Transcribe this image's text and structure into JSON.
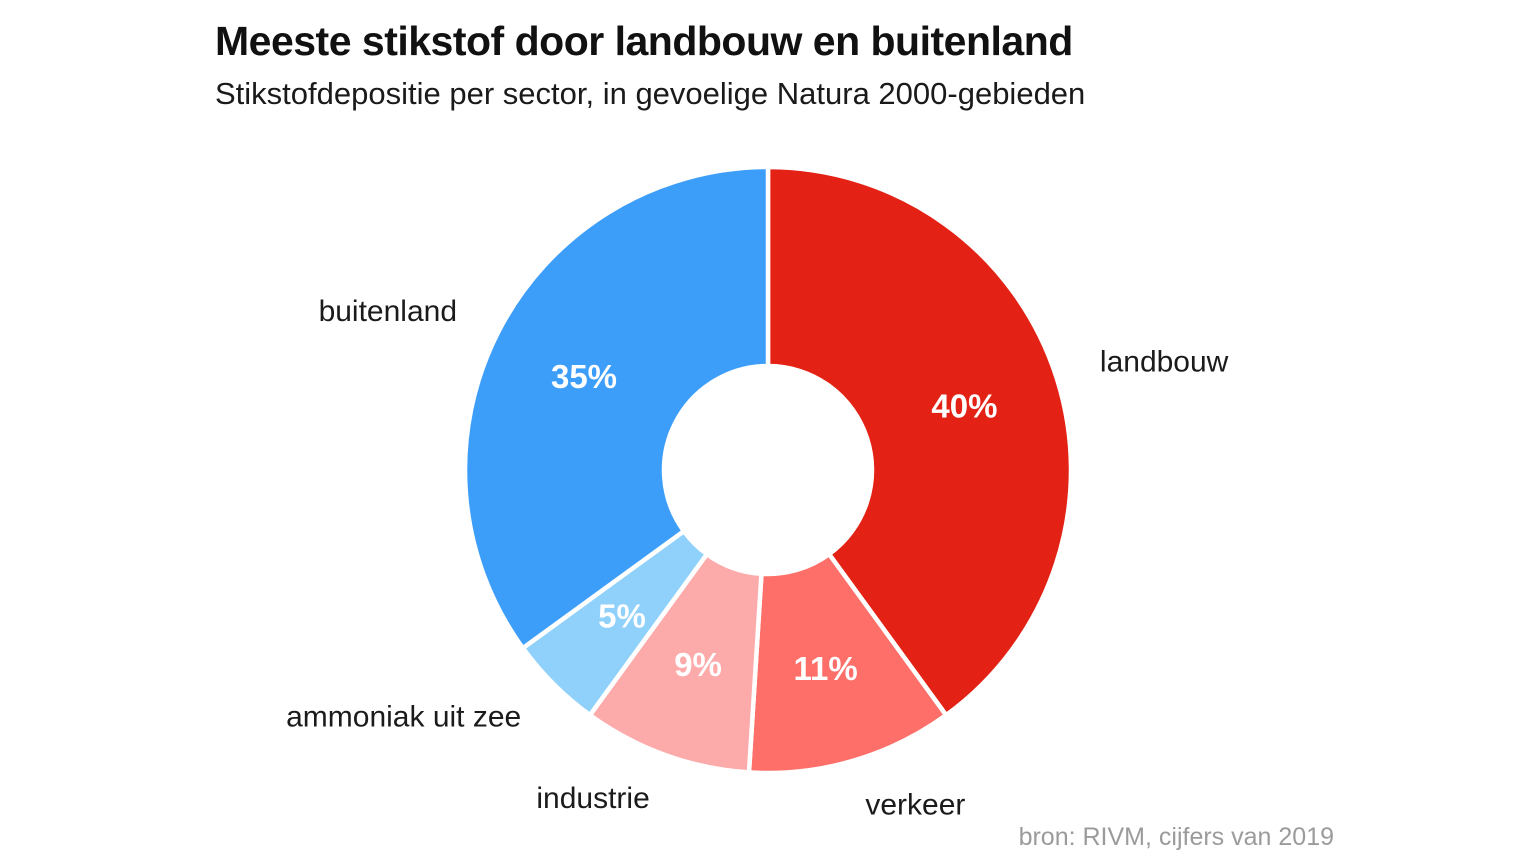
{
  "chart_data": {
    "type": "pie",
    "subtype": "donut",
    "title": "Meeste stikstof door landbouw en buitenland",
    "subtitle": "Stikstofdepositie per sector, in gevoelige Natura 2000-gebieden",
    "source": "bron: RIVM, cijfers van 2019",
    "unit": "%",
    "start_angle_deg": 0,
    "direction": "clockwise",
    "label_position": "outside",
    "value_label_position": "inside",
    "legend": "none",
    "background_color": "#ffffff",
    "separator_color": "#ffffff",
    "segments": [
      {
        "label": "landbouw",
        "value": 40,
        "value_label": "40%",
        "color": "#e32114"
      },
      {
        "label": "verkeer",
        "value": 11,
        "value_label": "11%",
        "color": "#fd6f68"
      },
      {
        "label": "industrie",
        "value": 9,
        "value_label": "9%",
        "color": "#fdaaab"
      },
      {
        "label": "ammoniak uit zee",
        "value": 5,
        "value_label": "5%",
        "color": "#8fd1fb"
      },
      {
        "label": "buitenland",
        "value": 35,
        "value_label": "35%",
        "color": "#3d9efa"
      }
    ]
  }
}
